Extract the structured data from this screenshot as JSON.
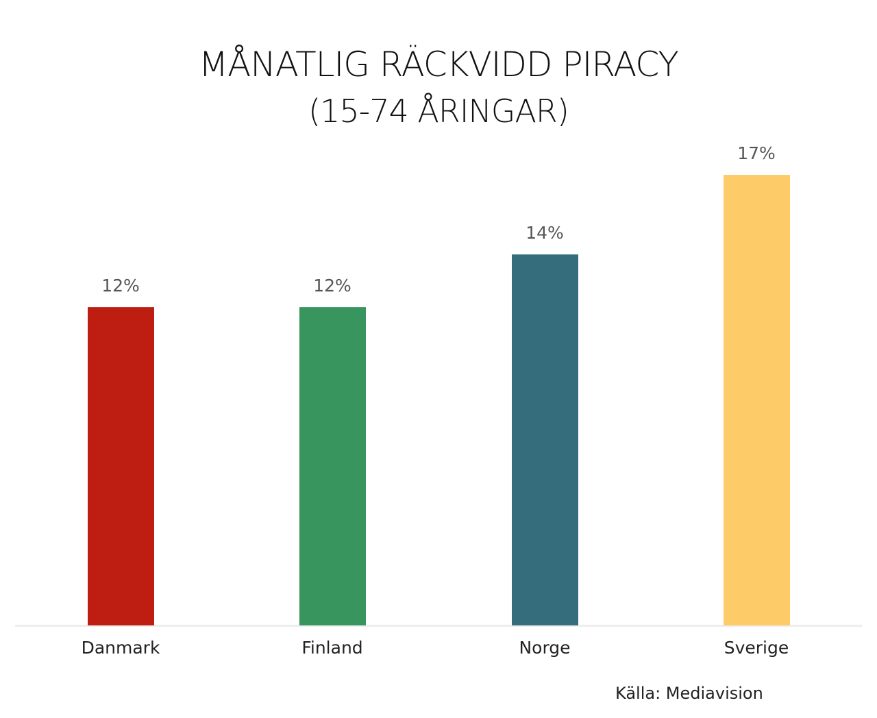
{
  "chart_data": {
    "type": "bar",
    "title": "MÅNATLIG RÄCKVIDD PIRACY",
    "subtitle": "(15-74 ÅRINGAR)",
    "categories": [
      "Danmark",
      "Finland",
      "Norge",
      "Sverige"
    ],
    "values": [
      12,
      12,
      14,
      17
    ],
    "value_labels": [
      "12%",
      "12%",
      "14%",
      "17%"
    ],
    "colors": [
      "#BE1E12",
      "#38955E",
      "#366D7C",
      "#FDCB67"
    ],
    "xlabel": "",
    "ylabel": "",
    "unit": "%",
    "grid": false,
    "legend": "none",
    "source": "Källa: Mediavision"
  }
}
